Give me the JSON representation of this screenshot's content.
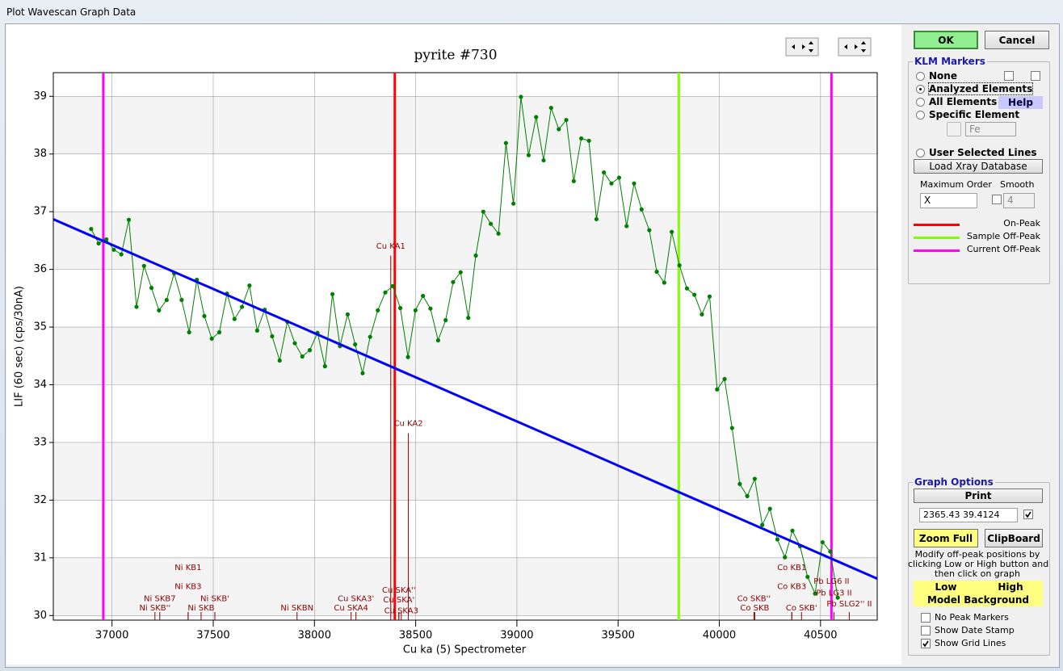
{
  "window_title": "Plot Wavescan Graph Data",
  "chart_data": {
    "type": "line",
    "title": "pyrite #730",
    "xlabel": "Cu ka (5) Spectrometer",
    "ylabel": "LIF (60 sec) (cps/30nA)",
    "xlim": [
      36710,
      40780
    ],
    "ylim": [
      29.92,
      39.41
    ],
    "xticks": [
      37000,
      37500,
      38000,
      38500,
      39000,
      39500,
      40000,
      40500
    ],
    "yticks": [
      30,
      31,
      32,
      33,
      34,
      35,
      36,
      37,
      38,
      39
    ],
    "grid": true,
    "series": [
      {
        "color": "#008000",
        "x": [
          36897,
          36934,
          36972,
          37009,
          37046,
          37083,
          37121,
          37158,
          37195,
          37232,
          37270,
          37307,
          37344,
          37381,
          37419,
          37456,
          37493,
          37530,
          37568,
          37605,
          37642,
          37679,
          37717,
          37754,
          37791,
          37828,
          37866,
          37903,
          37940,
          37977,
          38015,
          38052,
          38089,
          38126,
          38164,
          38201,
          38238,
          38275,
          38313,
          38350,
          38387,
          38424,
          38462,
          38499,
          38536,
          38573,
          38611,
          38648,
          38685,
          38722,
          38760,
          38797,
          38834,
          38871,
          38909,
          38946,
          38983,
          39020,
          39058,
          39095,
          39132,
          39169,
          39207,
          39244,
          39281,
          39318,
          39356,
          39393,
          39430,
          39467,
          39505,
          39542,
          39579,
          39616,
          39654,
          39691,
          39728,
          39765,
          39803,
          39840,
          39877,
          39914,
          39952,
          39989,
          40026,
          40063,
          40101,
          40138,
          40175,
          40212,
          40250,
          40287,
          40324,
          40361,
          40399,
          40436,
          40473,
          40510,
          40548,
          40585
        ],
        "values": [
          36.7,
          36.45,
          36.52,
          36.34,
          36.26,
          36.86,
          35.35,
          36.06,
          35.68,
          35.29,
          35.47,
          35.93,
          35.47,
          34.91,
          35.82,
          35.19,
          34.8,
          34.91,
          35.58,
          35.14,
          35.35,
          35.72,
          34.94,
          35.3,
          34.84,
          34.42,
          35.09,
          34.72,
          34.49,
          34.6,
          34.9,
          34.32,
          35.57,
          34.67,
          35.22,
          34.7,
          34.2,
          34.83,
          35.29,
          35.6,
          35.71,
          35.33,
          34.48,
          35.29,
          35.54,
          35.32,
          34.77,
          35.12,
          35.78,
          35.95,
          35.16,
          36.24,
          37.0,
          36.79,
          36.62,
          38.19,
          37.14,
          38.99,
          37.98,
          38.64,
          37.89,
          38.8,
          38.43,
          38.59,
          37.53,
          38.27,
          38.23,
          36.87,
          37.68,
          37.49,
          37.59,
          36.75,
          37.49,
          37.04,
          36.68,
          35.96,
          35.77,
          36.65,
          36.07,
          35.67,
          35.56,
          35.22,
          35.53,
          33.92,
          34.1,
          33.25,
          32.28,
          32.07,
          32.37,
          31.57,
          31.85,
          31.32,
          31.01,
          31.47,
          31.2,
          30.67,
          30.38,
          31.27,
          31.11,
          30.31
        ]
      },
      {
        "color": "#0000ff",
        "x": [
          36710,
          40780
        ],
        "values": [
          36.87,
          30.64
        ]
      }
    ],
    "markers": [
      {
        "name": "On-Peak",
        "color": "#ff0000",
        "x": [
          38397
        ]
      },
      {
        "name": "Sample Off-Peak",
        "color": "#80ff00",
        "x": [
          39800
        ]
      },
      {
        "name": "Current Off-Peak",
        "color": "#ff00ff",
        "x": [
          36957,
          40554
        ]
      }
    ],
    "peak_labels": [
      {
        "label": "Cu KA1",
        "x": 38377,
        "y": 36.4,
        "height": 36.24
      },
      {
        "label": "Cu KA2",
        "x": 38464,
        "y": 33.33,
        "height": 33.16
      },
      {
        "label": "Ni KB1",
        "x": 37376,
        "y": 30.83
      },
      {
        "label": "Ni KB3",
        "x": 37376,
        "y": 30.5
      },
      {
        "label": "Ni SKB7",
        "x": 37236,
        "y": 30.29
      },
      {
        "label": "Ni SKB''",
        "x": 37212,
        "y": 30.13
      },
      {
        "label": "Ni SKB'",
        "x": 37508,
        "y": 30.29
      },
      {
        "label": "Ni SKB",
        "x": 37440,
        "y": 30.13
      },
      {
        "label": "Ni SKBN",
        "x": 37914,
        "y": 30.13
      },
      {
        "label": "Cu SKA3'",
        "x": 38205,
        "y": 30.29
      },
      {
        "label": "Cu SKA4",
        "x": 38181,
        "y": 30.13
      },
      {
        "label": "Cu SKA''",
        "x": 38417,
        "y": 30.44
      },
      {
        "label": "Cu SKA'",
        "x": 38417,
        "y": 30.27
      },
      {
        "label": "Cu SKA3",
        "x": 38429,
        "y": 30.08
      },
      {
        "label": "Co SKB''",
        "x": 40171,
        "y": 30.29
      },
      {
        "label": "Co SKB",
        "x": 40175,
        "y": 30.13
      },
      {
        "label": "Co KB1",
        "x": 40358,
        "y": 30.83
      },
      {
        "label": "Co KB3",
        "x": 40358,
        "y": 30.5
      },
      {
        "label": "Co SKB'",
        "x": 40406,
        "y": 30.13
      },
      {
        "label": "Pb LG6 II",
        "x": 40554,
        "y": 30.59
      },
      {
        "label": "Pb LG3 II",
        "x": 40566,
        "y": 30.39
      },
      {
        "label": "Pb SLG2'' II",
        "x": 40642,
        "y": 30.2
      }
    ]
  },
  "buttons": {
    "ok": "OK",
    "cancel": "Cancel"
  },
  "klm_markers": {
    "title": "KLM Markers",
    "options": [
      "None",
      "Analyzed Elements",
      "All Elements",
      "Specific Element"
    ],
    "selected": 1,
    "help": "Help",
    "element": "Fe",
    "user_lines": "User Selected Lines",
    "load_db": "Load Xray Database",
    "max_order_label": "Maximum Order",
    "max_order": "X",
    "smooth_label": "Smooth",
    "smooth": "4"
  },
  "graph_options": {
    "title": "Graph Options",
    "print": "Print",
    "coords": "2365.43  39.4124",
    "zoom_full": "Zoom Full",
    "clipboard": "ClipBoard",
    "instructions": [
      "Modify off-peak positions by",
      "clicking Low or High button and",
      "then click on graph"
    ],
    "low": "Low",
    "high": "High",
    "model_background": "Model  Background",
    "checks": [
      {
        "label": "No Peak Markers",
        "checked": false
      },
      {
        "label": "Show Date Stamp",
        "checked": false
      },
      {
        "label": "Show Grid Lines",
        "checked": true
      }
    ]
  }
}
